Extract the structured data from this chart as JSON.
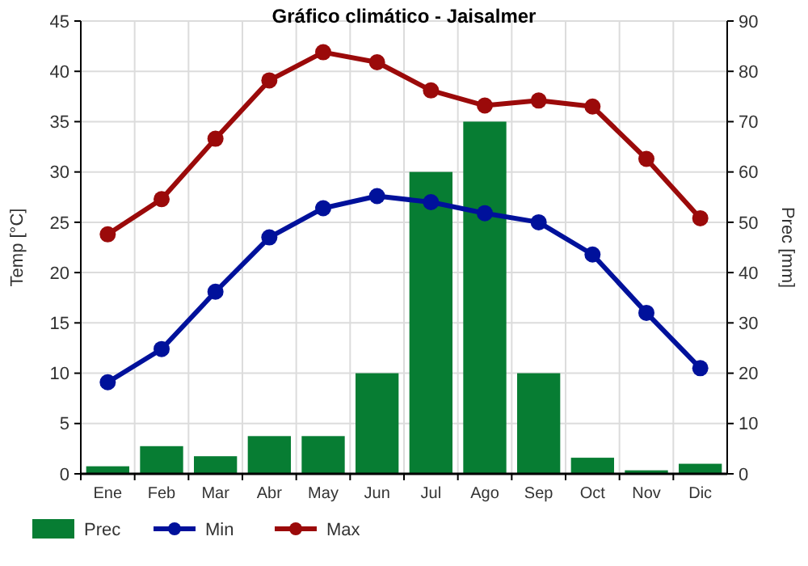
{
  "chart_data": {
    "type": "line",
    "title": "Gráfico climático - Jaisalmer",
    "ylabel": "Temp [°C]",
    "y2label": "Prec [mm]",
    "categories": [
      "Ene",
      "Feb",
      "Mar",
      "Abr",
      "May",
      "Jun",
      "Jul",
      "Ago",
      "Sep",
      "Oct",
      "Nov",
      "Dic"
    ],
    "series": [
      {
        "name": "Prec",
        "type": "bar",
        "axis": "y2",
        "color": "#077d33",
        "values": [
          1.5,
          5.5,
          3.5,
          7.5,
          7.5,
          20,
          60,
          70,
          20,
          3.2,
          0.7,
          2
        ]
      },
      {
        "name": "Min",
        "color": "#00119b",
        "values": [
          9.1,
          12.4,
          18.1,
          23.5,
          26.4,
          27.6,
          27.0,
          25.9,
          25.0,
          21.8,
          16.0,
          10.5
        ]
      },
      {
        "name": "Max",
        "color": "#9b0a0a",
        "values": [
          23.8,
          27.3,
          33.3,
          39.1,
          41.9,
          40.9,
          38.1,
          36.6,
          37.1,
          36.5,
          31.3,
          25.4
        ]
      }
    ],
    "ylim": [
      0,
      45
    ],
    "yticks": [
      0,
      5,
      10,
      15,
      20,
      25,
      30,
      35,
      40,
      45
    ],
    "y2lim": [
      0,
      90
    ],
    "y2ticks": [
      0,
      10,
      20,
      30,
      40,
      50,
      60,
      70,
      80,
      90
    ],
    "grid": true,
    "legend": "bottom",
    "marker": "circle",
    "line_style": "solid"
  }
}
